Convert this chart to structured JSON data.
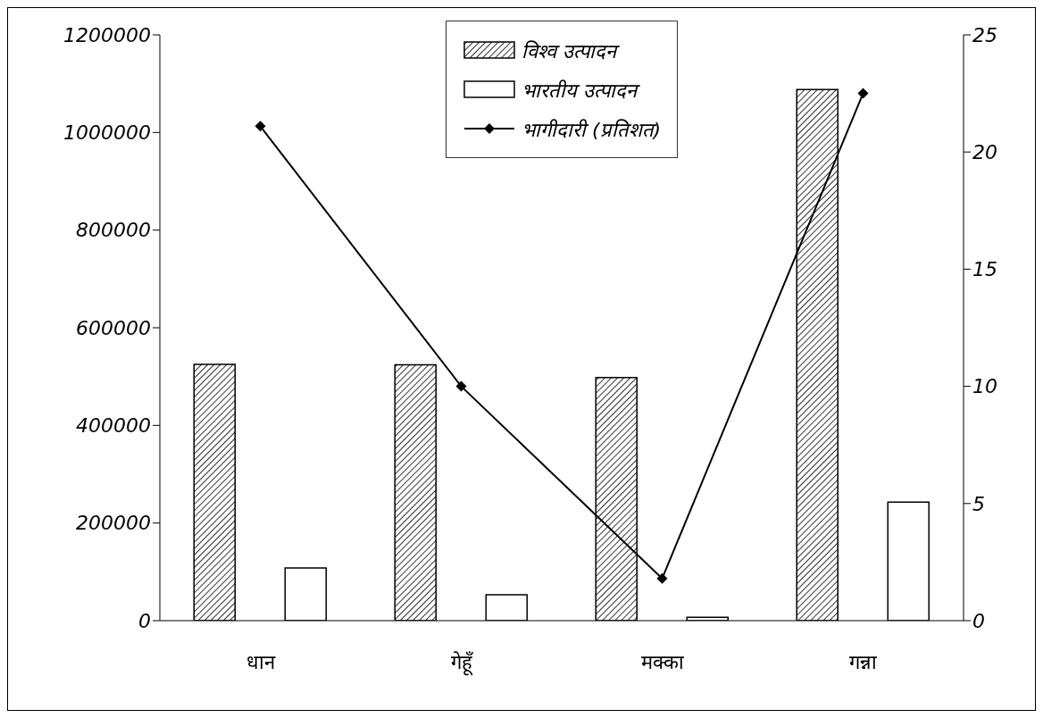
{
  "chart_data": {
    "type": "bar",
    "categories": [
      "धान",
      "गेहूँ",
      "मक्का",
      "गन्ना"
    ],
    "series": [
      {
        "name": "विश्व उत्पादन",
        "color": "#000000",
        "values": [
          525000,
          524000,
          498000,
          1088000
        ]
      },
      {
        "name": "भारतीय उत्पादन",
        "color": "#ffffff",
        "values": [
          108000,
          53000,
          7000,
          243000
        ]
      },
      {
        "name": "भागीदारी (प्रतिशत)",
        "type": "line",
        "axis": "y2",
        "color": "#000000",
        "values": [
          21.1,
          10.0,
          1.8,
          22.5
        ]
      }
    ],
    "ylim": [
      0,
      1200000
    ],
    "yticks": [
      0,
      200000,
      400000,
      600000,
      800000,
      1000000,
      1200000
    ],
    "y2lim": [
      0,
      25
    ],
    "y2ticks": [
      0,
      5,
      10,
      15,
      20,
      25
    ],
    "grid": false,
    "legend": "top",
    "marker": "diamond",
    "line_style": "solid"
  }
}
